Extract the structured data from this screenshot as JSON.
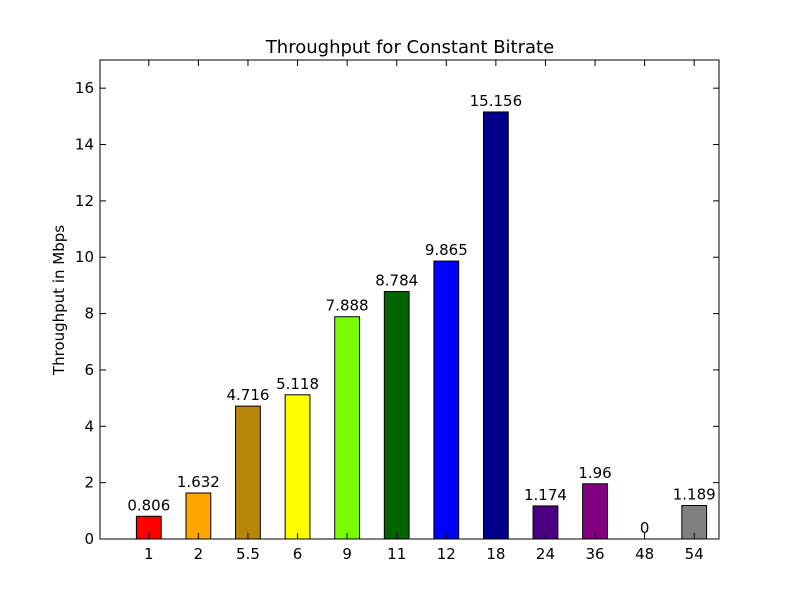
{
  "chart_data": {
    "type": "bar",
    "title": "Throughput for Constant Bitrate",
    "xlabel": "",
    "ylabel": "Throughput in Mbps",
    "ylim": [
      0,
      17
    ],
    "yticks": [
      0,
      2,
      4,
      6,
      8,
      10,
      12,
      14,
      16
    ],
    "grid": false,
    "categories": [
      "1",
      "2",
      "5.5",
      "6",
      "9",
      "11",
      "12",
      "18",
      "24",
      "36",
      "48",
      "54"
    ],
    "values": [
      0.806,
      1.632,
      4.716,
      5.118,
      7.888,
      8.784,
      9.865,
      15.156,
      1.174,
      1.96,
      0,
      1.189
    ],
    "value_labels": [
      "0.806",
      "1.632",
      "4.716",
      "5.118",
      "7.888",
      "8.784",
      "9.865",
      "15.156",
      "1.174",
      "1.96",
      "0",
      "1.189"
    ],
    "colors": [
      "#ff0000",
      "#ffa500",
      "#b8860b",
      "#ffff00",
      "#7cfc00",
      "#006400",
      "#0000ff",
      "#00008b",
      "#4b0082",
      "#800080",
      "#0000ff",
      "#808080"
    ]
  }
}
